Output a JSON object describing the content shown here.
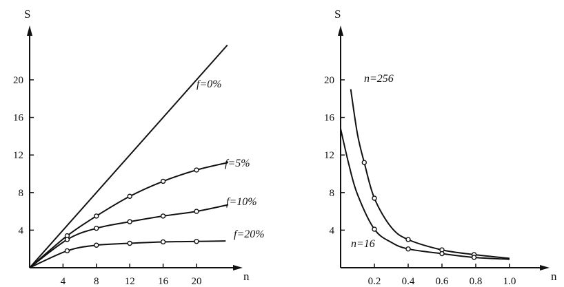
{
  "chart_data": [
    {
      "type": "line",
      "ylabel": "S",
      "xlabel": "n",
      "x_ticks": [
        4,
        8,
        12,
        16,
        20
      ],
      "y_ticks": [
        4,
        8,
        12,
        16,
        20
      ],
      "xlim": [
        0,
        24
      ],
      "ylim": [
        0,
        24
      ],
      "series": [
        {
          "name": "f=0%",
          "x": [
            0,
            23.7
          ],
          "y": [
            0,
            23.7
          ],
          "markers": []
        },
        {
          "name": "f=5%",
          "x": [
            0,
            4.5,
            8,
            12,
            16,
            20,
            23.8
          ],
          "y": [
            0,
            3.4,
            5.5,
            7.6,
            9.2,
            10.4,
            11.2
          ],
          "markers": [
            4.5,
            8,
            12,
            16,
            20
          ]
        },
        {
          "name": "f=10%",
          "x": [
            0,
            4.5,
            8,
            12,
            16,
            20,
            23.8
          ],
          "y": [
            0,
            3.0,
            4.2,
            4.9,
            5.5,
            6.0,
            6.7
          ],
          "markers": [
            4.5,
            8,
            12,
            16,
            20
          ]
        },
        {
          "name": "f=20%",
          "x": [
            0,
            4.5,
            8,
            12,
            16,
            20,
            23.5
          ],
          "y": [
            0,
            1.8,
            2.4,
            2.6,
            2.75,
            2.8,
            2.85
          ],
          "markers": [
            4.5,
            8,
            12,
            16,
            20
          ]
        }
      ]
    },
    {
      "type": "line",
      "ylabel": "S",
      "xlabel": "n",
      "x_ticks": [
        "0.2",
        "0.4",
        "0.6",
        "0.8",
        "1.0"
      ],
      "y_ticks": [
        4,
        8,
        12,
        16,
        20
      ],
      "xlim": [
        0,
        1.1
      ],
      "ylim": [
        0,
        24
      ],
      "series": [
        {
          "name": "n=256",
          "x": [
            0.06,
            0.1,
            0.14,
            0.2,
            0.3,
            0.4,
            0.6,
            0.79,
            1.0
          ],
          "y": [
            19,
            14.2,
            11.2,
            7.4,
            4.3,
            3.0,
            1.9,
            1.4,
            1.0
          ],
          "markers": [
            0.14,
            0.2,
            0.4,
            0.6,
            0.79
          ]
        },
        {
          "name": "n=16",
          "x": [
            0.0,
            0.05,
            0.1,
            0.2,
            0.3,
            0.4,
            0.6,
            0.79,
            1.0
          ],
          "y": [
            14.8,
            10.9,
            7.8,
            4.1,
            2.7,
            2.0,
            1.5,
            1.1,
            0.9
          ],
          "markers": [
            0.2,
            0.4,
            0.6,
            0.79
          ]
        }
      ]
    }
  ]
}
